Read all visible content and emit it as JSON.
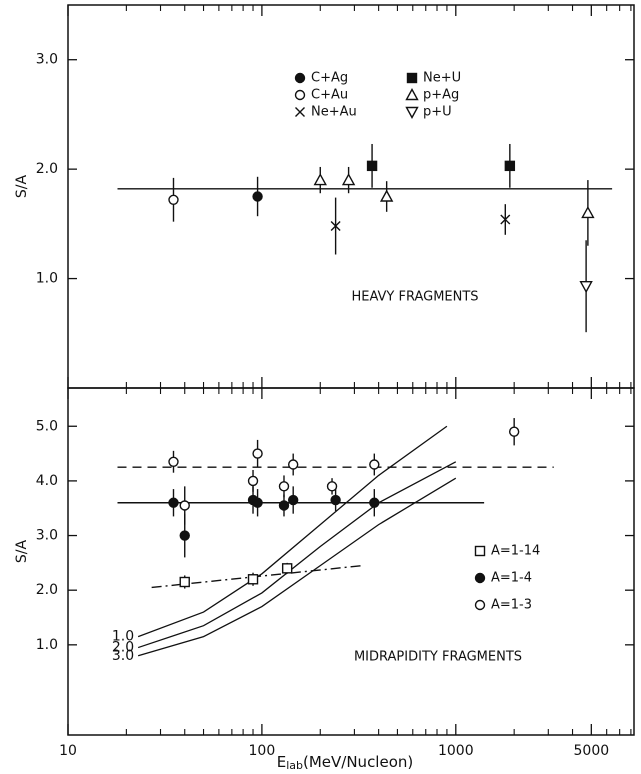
{
  "chart_data": [
    {
      "type": "scatter",
      "ylabel": "S/A",
      "ylim": [
        0,
        3.5
      ],
      "yticks": [
        {
          "value": 1,
          "label": "1.0"
        },
        {
          "value": 2,
          "label": "2.0"
        },
        {
          "value": 3,
          "label": "3.0"
        }
      ],
      "annotation": "HEAVY FRAGMENTS",
      "legend": "upper center",
      "series": [
        {
          "name": "C+Ag",
          "marker": "filled-circle",
          "x": [
            95
          ],
          "values": [
            1.75
          ],
          "errors": [
            0.18
          ]
        },
        {
          "name": "C+Au",
          "marker": "open-circle",
          "x": [
            35
          ],
          "values": [
            1.72
          ],
          "errors": [
            0.2
          ]
        },
        {
          "name": "Ne+Au",
          "marker": "cross",
          "x": [
            240,
            1800
          ],
          "values": [
            1.48,
            1.54
          ],
          "errors": [
            0.26,
            0.14
          ]
        },
        {
          "name": "Ne+U",
          "marker": "filled-square",
          "x": [
            370,
            1900
          ],
          "values": [
            2.03,
            2.03
          ],
          "errors": [
            0.2,
            0.2
          ]
        },
        {
          "name": "p+Ag",
          "marker": "up-triangle",
          "x": [
            200,
            280,
            440,
            4800
          ],
          "values": [
            1.9,
            1.9,
            1.75,
            1.6
          ],
          "errors": [
            0.12,
            0.12,
            0.14,
            0.3
          ]
        },
        {
          "name": "p+U",
          "marker": "down-triangle",
          "x": [
            4700
          ],
          "values": [
            0.93
          ],
          "errors": [
            0.42
          ]
        }
      ],
      "lines": [
        {
          "x": [
            18,
            6400
          ],
          "values": [
            1.82,
            1.82
          ],
          "style": "solid"
        }
      ]
    },
    {
      "type": "scatter",
      "ylabel": "S/A",
      "xlabel": {
        "symbol": "E",
        "subscript": "lab",
        "unit": "(MeV/Nucleon)"
      },
      "xlim": [
        10,
        8300
      ],
      "log_x": true,
      "xticks": [
        10,
        100,
        1000,
        5000
      ],
      "xminor_ticks": [
        20,
        30,
        40,
        50,
        60,
        70,
        80,
        90,
        200,
        300,
        400,
        500,
        600,
        700,
        800,
        900,
        2000,
        3000,
        4000,
        6000,
        7000,
        8000
      ],
      "ylim": [
        -0.65,
        5.7
      ],
      "yticks": [
        {
          "value": 1,
          "label": "1.0"
        },
        {
          "value": 2,
          "label": "2.0"
        },
        {
          "value": 3,
          "label": "3.0"
        },
        {
          "value": 4,
          "label": "4.0"
        },
        {
          "value": 5,
          "label": "5.0"
        }
      ],
      "annotation": "MIDRAPIDITY FRAGMENTS",
      "legend": "lower right",
      "series": [
        {
          "name": "A=1-14",
          "marker": "open-square",
          "x": [
            40,
            90,
            135
          ],
          "values": [
            2.15,
            2.2,
            2.4
          ],
          "errors": [
            0.12,
            0.12,
            0.1
          ]
        },
        {
          "name": "A=1-4",
          "marker": "filled-circle",
          "x": [
            35,
            40,
            90,
            95,
            130,
            145,
            240,
            380
          ],
          "values": [
            3.6,
            3.0,
            3.65,
            3.6,
            3.55,
            3.65,
            3.65,
            3.6
          ],
          "errors": [
            0.25,
            0.4,
            0.25,
            0.25,
            0.2,
            0.25,
            0.2,
            0.25
          ]
        },
        {
          "name": "A=1-3",
          "marker": "open-circle",
          "x": [
            35,
            40,
            90,
            95,
            130,
            145,
            230,
            380,
            2000
          ],
          "values": [
            4.35,
            3.55,
            4.0,
            4.5,
            3.9,
            4.3,
            3.9,
            4.3,
            4.9
          ],
          "errors": [
            0.2,
            0.35,
            0.2,
            0.25,
            0.2,
            0.2,
            0.15,
            0.2,
            0.25
          ]
        }
      ],
      "lines": [
        {
          "x": [
            18,
            3200
          ],
          "values": [
            4.25,
            4.25
          ],
          "style": "dashed"
        },
        {
          "x": [
            18,
            1400
          ],
          "values": [
            3.6,
            3.6
          ],
          "style": "solid"
        },
        {
          "x": [
            27,
            330
          ],
          "values": [
            2.05,
            2.45
          ],
          "style": "dashdot"
        }
      ],
      "curves": [
        {
          "name": "1.0",
          "x": [
            23,
            50,
            100,
            200,
            400,
            900
          ],
          "values": [
            1.15,
            1.6,
            2.3,
            3.2,
            4.1,
            5.0
          ]
        },
        {
          "name": "2.0",
          "x": [
            23,
            50,
            100,
            200,
            400,
            1000
          ],
          "values": [
            0.95,
            1.35,
            1.95,
            2.8,
            3.6,
            4.35
          ]
        },
        {
          "name": "3.0",
          "x": [
            23,
            50,
            100,
            200,
            400,
            1000
          ],
          "values": [
            0.8,
            1.15,
            1.7,
            2.45,
            3.2,
            4.05
          ]
        }
      ]
    }
  ]
}
